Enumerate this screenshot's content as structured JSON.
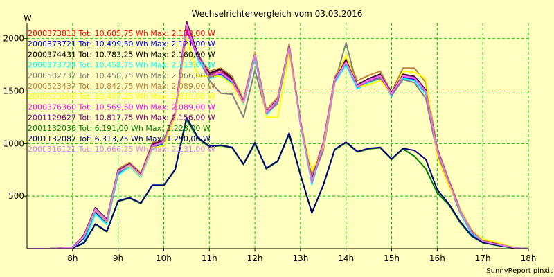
{
  "chart_data": {
    "type": "line",
    "title": "Wechselrichtervergleich vom 03.03.2016",
    "ylabel": "W",
    "footer": "SunnyReport pinxit",
    "grid": true,
    "legend_position": "top-left",
    "xlim": [
      7,
      18
    ],
    "ylim": [
      0,
      2150
    ],
    "x_ticks": [
      8,
      9,
      10,
      11,
      12,
      13,
      14,
      15,
      16,
      17,
      18
    ],
    "x_tick_labels": [
      "8h",
      "9h",
      "10h",
      "11h",
      "12h",
      "13h",
      "14h",
      "15h",
      "16h",
      "17h",
      "18h"
    ],
    "y_ticks": [
      500,
      1000,
      1500,
      2000
    ],
    "y_tick_labels": [
      "500",
      "1000",
      "1500",
      "2000"
    ],
    "x": [
      7.0,
      7.5,
      8.0,
      8.25,
      8.5,
      8.75,
      9.0,
      9.25,
      9.5,
      9.75,
      10.0,
      10.25,
      10.5,
      10.75,
      11.0,
      11.25,
      11.5,
      11.75,
      12.0,
      12.25,
      12.5,
      12.75,
      13.0,
      13.25,
      13.5,
      13.75,
      14.0,
      14.25,
      14.5,
      14.75,
      15.0,
      15.25,
      15.5,
      15.75,
      16.0,
      16.25,
      16.5,
      16.75,
      17.0,
      17.25,
      17.5,
      17.75,
      18.0
    ],
    "series": [
      {
        "name": "2000373813",
        "legend": "2000373813 Tot: 10.605,75 Wh Max: 2.133,00 W",
        "color": "#ff0000",
        "values": [
          0,
          0,
          10,
          120,
          380,
          270,
          730,
          800,
          700,
          980,
          1020,
          1280,
          2130,
          1830,
          1650,
          1680,
          1600,
          1400,
          1850,
          1300,
          1420,
          1920,
          1200,
          640,
          1000,
          1610,
          1780,
          1550,
          1610,
          1650,
          1480,
          1650,
          1630,
          1500,
          930,
          640,
          360,
          160,
          70,
          45,
          25,
          5,
          0
        ]
      },
      {
        "name": "2000373721",
        "legend": "2000373721 Tot: 10.499,50 Wh Max: 2.121,00 W",
        "color": "#0000ff",
        "values": [
          0,
          0,
          8,
          100,
          350,
          240,
          710,
          790,
          690,
          960,
          1000,
          1270,
          2120,
          1810,
          1630,
          1660,
          1580,
          1380,
          1830,
          1280,
          1400,
          1900,
          1190,
          620,
          980,
          1590,
          1760,
          1530,
          1590,
          1630,
          1460,
          1630,
          1610,
          1480,
          920,
          630,
          350,
          150,
          65,
          40,
          20,
          5,
          0
        ]
      },
      {
        "name": "2000374431",
        "legend": "2000374431 Tot: 10.783,25 Wh Max: 2.160,00 W",
        "color": "#000000",
        "values": [
          0,
          0,
          12,
          130,
          390,
          280,
          750,
          810,
          710,
          1000,
          1030,
          1290,
          2160,
          1850,
          1670,
          1710,
          1620,
          1410,
          1860,
          1310,
          1430,
          1930,
          1210,
          660,
          1010,
          1620,
          1800,
          1560,
          1620,
          1660,
          1490,
          1660,
          1640,
          1510,
          950,
          650,
          370,
          170,
          75,
          50,
          28,
          5,
          0
        ]
      },
      {
        "name": "2000373724",
        "legend": "2000373724 Tot: 10.458,75 Wh Max: 2.113,00 W",
        "color": "#00ffff",
        "values": [
          0,
          0,
          5,
          60,
          330,
          230,
          700,
          780,
          680,
          950,
          990,
          1260,
          2110,
          1800,
          1620,
          1650,
          1570,
          1370,
          1820,
          1270,
          1390,
          1890,
          1180,
          610,
          970,
          1580,
          1750,
          1520,
          1580,
          1620,
          1450,
          1620,
          1600,
          1470,
          910,
          620,
          340,
          140,
          60,
          38,
          18,
          5,
          0
        ]
      },
      {
        "name": "2000502737",
        "legend": "2000502737 Tot: 10.458,75 Wh Max: 2.066,00 W",
        "color": "#808080",
        "values": [
          0,
          0,
          10,
          110,
          360,
          250,
          720,
          790,
          700,
          970,
          1010,
          1270,
          2066,
          1830,
          1600,
          1480,
          1470,
          1250,
          1700,
          1290,
          1380,
          1950,
          1180,
          660,
          930,
          1580,
          1960,
          1540,
          1590,
          1620,
          1460,
          1610,
          1580,
          1430,
          900,
          620,
          350,
          160,
          70,
          45,
          25,
          5,
          0
        ]
      },
      {
        "name": "2000523437",
        "legend": "2000523437 Tot: 10.842,75 Wh Max: 2.089,00 W",
        "color": "#c08040",
        "values": [
          0,
          0,
          12,
          125,
          380,
          280,
          760,
          820,
          720,
          1010,
          1040,
          1300,
          2089,
          1840,
          1690,
          1720,
          1640,
          1420,
          1870,
          1320,
          1440,
          1940,
          1220,
          700,
          1010,
          1630,
          1830,
          1600,
          1650,
          1690,
          1490,
          1720,
          1720,
          1580,
          960,
          660,
          380,
          180,
          80,
          55,
          30,
          5,
          0
        ]
      },
      {
        "name": "2000523608",
        "legend": "2000523608 Tot: 10.487,25 Wh Max: 2.010,00 W",
        "color": "#ffff00",
        "values": [
          0,
          0,
          10,
          115,
          370,
          260,
          740,
          790,
          690,
          960,
          980,
          1250,
          2010,
          1640,
          1640,
          1640,
          1560,
          1380,
          1860,
          1250,
          1250,
          1860,
          1200,
          740,
          960,
          1600,
          1840,
          1540,
          1560,
          1600,
          1470,
          1690,
          1680,
          1620,
          870,
          600,
          380,
          170,
          90,
          70,
          35,
          5,
          0
        ]
      },
      {
        "name": "2000376360",
        "legend": "2000376360 Tot: 10.569,50 Wh Max: 2.089,00 W",
        "color": "#ff00ff",
        "values": [
          0,
          0,
          10,
          120,
          375,
          265,
          740,
          800,
          700,
          980,
          1020,
          1280,
          2089,
          1820,
          1640,
          1670,
          1590,
          1390,
          1840,
          1290,
          1410,
          1910,
          1200,
          630,
          990,
          1600,
          1770,
          1540,
          1600,
          1640,
          1470,
          1640,
          1620,
          1490,
          930,
          640,
          360,
          160,
          70,
          45,
          25,
          5,
          0
        ]
      },
      {
        "name": "2001129627",
        "legend": "2001129627 Tot: 10.817,75 Wh Max: 2.156,00 W",
        "color": "#800080",
        "values": [
          0,
          0,
          12,
          125,
          385,
          275,
          745,
          805,
          705,
          990,
          1025,
          1285,
          2156,
          1840,
          1660,
          1700,
          1610,
          1400,
          1850,
          1300,
          1420,
          1920,
          1205,
          650,
          1005,
          1615,
          1790,
          1555,
          1615,
          1655,
          1485,
          1655,
          1635,
          1505,
          945,
          645,
          365,
          165,
          72,
          48,
          26,
          5,
          0
        ]
      },
      {
        "name": "2001132036",
        "legend": "2001132036 Tot: 6.191,00 Wh Max: 1.228,00 W",
        "color": "#008000",
        "values": [
          0,
          0,
          5,
          50,
          230,
          160,
          450,
          480,
          430,
          600,
          600,
          750,
          1228,
          1050,
          970,
          980,
          960,
          800,
          1000,
          760,
          830,
          1090,
          700,
          340,
          600,
          940,
          1010,
          920,
          950,
          960,
          850,
          950,
          880,
          760,
          530,
          420,
          250,
          120,
          55,
          35,
          18,
          3,
          0
        ]
      },
      {
        "name": "2001132087",
        "legend": "2001132087 Tot: 6.313,75 Wh Max: 1.250,00 W",
        "color": "#000080",
        "values": [
          0,
          0,
          5,
          55,
          235,
          165,
          455,
          485,
          435,
          605,
          605,
          755,
          1250,
          1060,
          975,
          985,
          965,
          805,
          1010,
          765,
          835,
          1100,
          705,
          340,
          605,
          945,
          1015,
          925,
          955,
          965,
          855,
          955,
          935,
          850,
          560,
          430,
          260,
          125,
          58,
          38,
          20,
          3,
          0
        ]
      },
      {
        "name": "2000316121",
        "legend": "2000316121 Tot: 10.666,25 Wh Max: 2.131,00 W",
        "color": "#e080e0",
        "values": [
          0,
          0,
          10,
          118,
          378,
          268,
          735,
          798,
          698,
          978,
          1018,
          1278,
          2131,
          1825,
          1645,
          1675,
          1595,
          1395,
          1845,
          1295,
          1415,
          1915,
          1195,
          635,
          995,
          1605,
          1775,
          1545,
          1605,
          1645,
          1475,
          1645,
          1625,
          1495,
          935,
          640,
          360,
          160,
          70,
          45,
          25,
          5,
          0
        ]
      }
    ]
  }
}
